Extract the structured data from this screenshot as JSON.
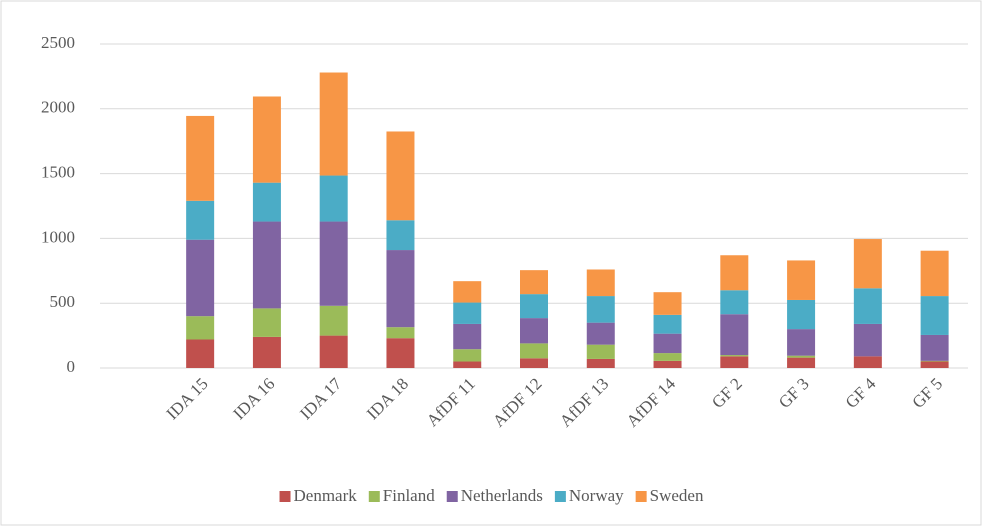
{
  "chart_data": {
    "type": "stacked_bar",
    "categories": [
      null,
      "IDA 15",
      "IDA 16",
      "IDA 17",
      "IDA 18",
      "AfDF 11",
      "AfDF 12",
      "AfDF 13",
      "AfDF 14",
      "GF 2",
      "GF 3",
      "GF 4",
      "GF 5"
    ],
    "series": [
      {
        "name": "Denmark",
        "color": "#c0504d",
        "values": [
          null,
          220,
          240,
          250,
          230,
          50,
          75,
          70,
          55,
          90,
          80,
          90,
          50
        ]
      },
      {
        "name": "Finland",
        "color": "#9bbb59",
        "values": [
          null,
          180,
          220,
          230,
          85,
          95,
          115,
          110,
          60,
          10,
          15,
          0,
          5
        ]
      },
      {
        "name": "Netherlands",
        "color": "#8064a2",
        "values": [
          null,
          590,
          670,
          650,
          595,
          195,
          195,
          170,
          150,
          315,
          205,
          250,
          200
        ]
      },
      {
        "name": "Norway",
        "color": "#4bacc6",
        "values": [
          null,
          300,
          300,
          355,
          230,
          165,
          185,
          205,
          145,
          185,
          225,
          275,
          300
        ]
      },
      {
        "name": "Sweden",
        "color": "#f79646",
        "values": [
          null,
          655,
          665,
          795,
          685,
          165,
          185,
          205,
          175,
          270,
          305,
          380,
          350
        ]
      }
    ],
    "ylim": [
      0,
      2500
    ],
    "yticks": [
      0,
      500,
      1000,
      1500,
      2000,
      2500
    ],
    "grid": true,
    "legend": "bottom"
  }
}
